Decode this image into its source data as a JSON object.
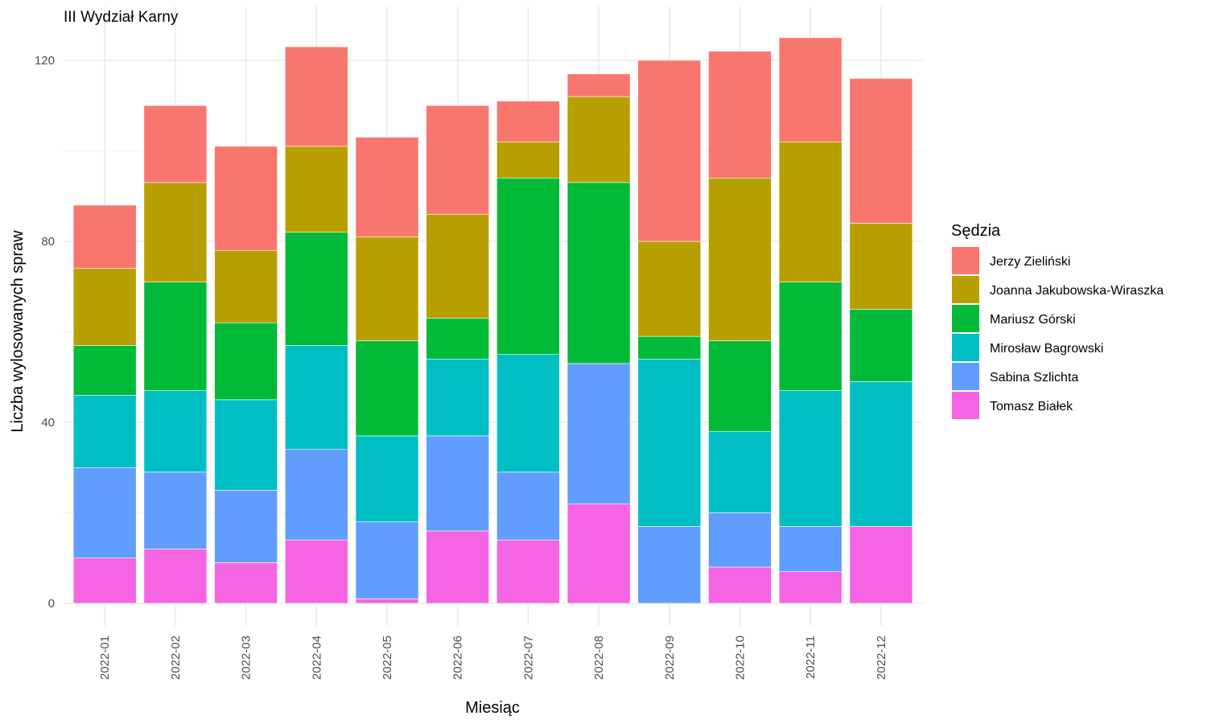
{
  "chart_data": {
    "type": "bar",
    "stacked": true,
    "title": "III Wydział Karny",
    "xlabel": "Miesiąc",
    "ylabel": "Liczba wylosowanych spraw",
    "ylim": [
      0,
      130
    ],
    "yticks": [
      0,
      40,
      80,
      120
    ],
    "grid": true,
    "legend_title": "Sędzia",
    "legend_position": "right",
    "categories": [
      "2022-01",
      "2022-02",
      "2022-03",
      "2022-04",
      "2022-05",
      "2022-06",
      "2022-07",
      "2022-08",
      "2022-09",
      "2022-10",
      "2022-11",
      "2022-12"
    ],
    "series": [
      {
        "name": "Tomasz Białek",
        "color": "#F564E3",
        "values": [
          10,
          12,
          9,
          14,
          1,
          16,
          14,
          22,
          0,
          8,
          7,
          17
        ]
      },
      {
        "name": "Sabina Szlichta",
        "color": "#619CFF",
        "values": [
          20,
          17,
          16,
          20,
          17,
          21,
          15,
          31,
          17,
          12,
          10,
          0
        ]
      },
      {
        "name": "Mirosław Bagrowski",
        "color": "#00BFC4",
        "values": [
          16,
          18,
          20,
          23,
          19,
          17,
          26,
          0,
          37,
          18,
          30,
          32
        ]
      },
      {
        "name": "Mariusz Górski",
        "color": "#00BA38",
        "values": [
          11,
          24,
          17,
          25,
          21,
          9,
          39,
          40,
          5,
          20,
          24,
          16
        ]
      },
      {
        "name": "Joanna Jakubowska-Wiraszka",
        "color": "#B79F00",
        "values": [
          17,
          22,
          16,
          19,
          23,
          23,
          8,
          19,
          21,
          36,
          31,
          19
        ]
      },
      {
        "name": "Jerzy Zieliński",
        "color": "#F8766D",
        "values": [
          14,
          17,
          23,
          22,
          22,
          24,
          9,
          5,
          40,
          28,
          23,
          32
        ]
      }
    ],
    "legend_order": [
      "Jerzy Zieliński",
      "Joanna Jakubowska-Wiraszka",
      "Mariusz Górski",
      "Mirosław Bagrowski",
      "Sabina Szlichta",
      "Tomasz Białek"
    ]
  }
}
